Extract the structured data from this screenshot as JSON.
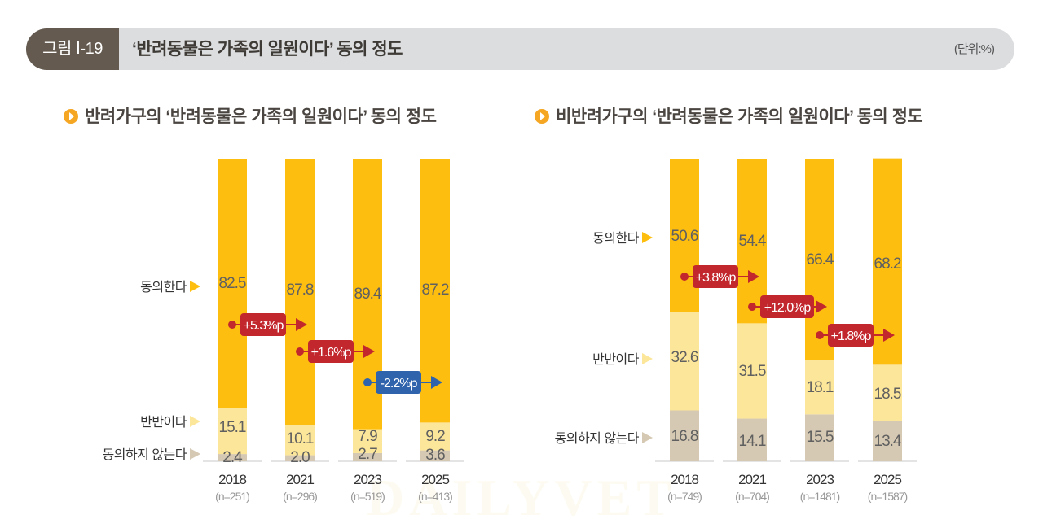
{
  "header": {
    "figure_label": "그림 Ⅰ-19",
    "title": "‘반려동물은 가족의 일원이다’ 동의 정도",
    "unit": "(단위:%)"
  },
  "watermark": "DAILYVET",
  "colors": {
    "agree": "#fdbe10",
    "neutral": "#fce69a",
    "disagree": "#d6c9b3",
    "change_positive": "#c1272d",
    "change_negative": "#2f64ad",
    "header_bg": "#dcdddf",
    "badge_bg": "#645a4f",
    "bullet": "#f5a623"
  },
  "chart_data": [
    {
      "type": "bar",
      "stacked": true,
      "title": "반려가구의 ‘반려동물은 가족의 일원이다’ 동의 정도",
      "categories": [
        "2018",
        "2021",
        "2023",
        "2025"
      ],
      "sample_sizes": [
        "(n=251)",
        "(n=296)",
        "(n=519)",
        "(n=413)"
      ],
      "series": [
        {
          "name": "동의하지 않는다",
          "key": "disagree",
          "values": [
            2.4,
            2.0,
            2.7,
            3.6
          ]
        },
        {
          "name": "반반이다",
          "key": "neutral",
          "values": [
            15.1,
            10.1,
            7.9,
            9.2
          ]
        },
        {
          "name": "동의한다",
          "key": "agree",
          "values": [
            82.5,
            87.8,
            89.4,
            87.2
          ]
        }
      ],
      "value_labels": {
        "agree": [
          "82.5",
          "87.8",
          "89.4",
          "87.2"
        ],
        "neutral": [
          "15.1",
          "10.1",
          "7.9",
          "9.2"
        ],
        "disagree": [
          "2.4",
          "2.0",
          "2.7",
          "3.6"
        ]
      },
      "changes": [
        {
          "label": "+5.3%p",
          "value": 5.3,
          "from": "2018",
          "to": "2021"
        },
        {
          "label": "+1.6%p",
          "value": 1.6,
          "from": "2021",
          "to": "2023"
        },
        {
          "label": "-2.2%p",
          "value": -2.2,
          "from": "2023",
          "to": "2025"
        }
      ],
      "legend_labels": [
        "동의한다",
        "반반이다",
        "동의하지 않는다"
      ],
      "ylim": [
        0,
        100
      ],
      "unit": "%",
      "grid": false
    },
    {
      "type": "bar",
      "stacked": true,
      "title": "비반려가구의 ‘반려동물은 가족의 일원이다’ 동의 정도",
      "categories": [
        "2018",
        "2021",
        "2023",
        "2025"
      ],
      "sample_sizes": [
        "(n=749)",
        "(n=704)",
        "(n=1481)",
        "(n=1587)"
      ],
      "series": [
        {
          "name": "동의하지 않는다",
          "key": "disagree",
          "values": [
            16.8,
            14.1,
            15.5,
            13.4
          ]
        },
        {
          "name": "반반이다",
          "key": "neutral",
          "values": [
            32.6,
            31.5,
            18.1,
            18.5
          ]
        },
        {
          "name": "동의한다",
          "key": "agree",
          "values": [
            50.6,
            54.4,
            66.4,
            68.2
          ]
        }
      ],
      "value_labels": {
        "agree": [
          "50.6",
          "54.4",
          "66.4",
          "68.2"
        ],
        "neutral": [
          "32.6",
          "31.5",
          "18.1",
          "18.5"
        ],
        "disagree": [
          "16.8",
          "14.1",
          "15.5",
          "13.4"
        ]
      },
      "changes": [
        {
          "label": "+3.8%p",
          "value": 3.8,
          "from": "2018",
          "to": "2021"
        },
        {
          "label": "+12.0%p",
          "value": 12.0,
          "from": "2021",
          "to": "2023"
        },
        {
          "label": "+1.8%p",
          "value": 1.8,
          "from": "2023",
          "to": "2025"
        }
      ],
      "legend_labels": [
        "동의한다",
        "반반이다",
        "동의하지 않는다"
      ],
      "ylim": [
        0,
        100
      ],
      "unit": "%",
      "grid": false
    }
  ]
}
